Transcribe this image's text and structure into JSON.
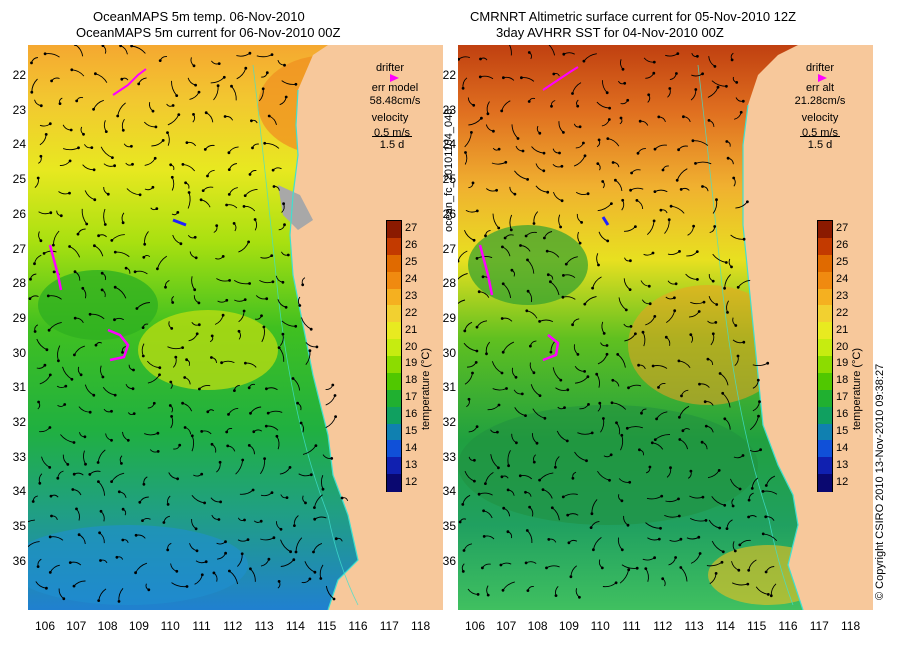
{
  "left_panel": {
    "title_line1": "OceanMAPS 5m temp. 06-Nov-2010",
    "title_line2": "OceanMAPS 5m current for 06-Nov-2010 00Z",
    "legend": {
      "drifter": "drifter",
      "err_label": "err model",
      "err_value": "58.48cm/s",
      "velocity": "velocity",
      "velocity_value": "0.5 m/s",
      "duration": "1.5 d"
    },
    "colorbar_label": "temperature (°C)"
  },
  "right_panel": {
    "title_line1": "CMRNRT Altimetric surface current for 05-Nov-2010 12Z",
    "title_line2": "3day AVHRR SST for 04-Nov-2010 00Z",
    "legend": {
      "drifter": "drifter",
      "err_label": "err alt",
      "err_value": "21.28cm/s",
      "velocity": "velocity",
      "velocity_value": "0.5 m/s",
      "duration": "1.5 d"
    },
    "colorbar_label": "temperature (°C)"
  },
  "side_text": {
    "middle": "ocean_fc_20101104_048",
    "right": "© Copyright CSIRO 2010   13-Nov-2010 09:38:27"
  },
  "axes": {
    "lat_labels": [
      "22",
      "23",
      "24",
      "25",
      "26",
      "27",
      "28",
      "29",
      "30",
      "31",
      "32",
      "33",
      "34",
      "35",
      "36"
    ],
    "lon_labels": [
      "106",
      "107",
      "108",
      "109",
      "110",
      "111",
      "112",
      "113",
      "114",
      "115",
      "116",
      "117",
      "118"
    ]
  },
  "colorbar": {
    "ticks": [
      "27",
      "26",
      "25",
      "24",
      "23",
      "22",
      "21",
      "20",
      "19",
      "18",
      "17",
      "16",
      "15",
      "14",
      "13",
      "12"
    ],
    "colors": [
      "#8b1a00",
      "#c33a00",
      "#e06a00",
      "#f08a10",
      "#f5b020",
      "#f2d030",
      "#e8ea20",
      "#c6ec10",
      "#8cdc00",
      "#50c800",
      "#20b030",
      "#10a060",
      "#1080b0",
      "#1050d8",
      "#1020b0",
      "#0a0870"
    ]
  },
  "colors": {
    "land": "#f7c89b",
    "coast_line": "#40e0d0",
    "drifter": "#ff00ff",
    "arrow": "#000000"
  }
}
